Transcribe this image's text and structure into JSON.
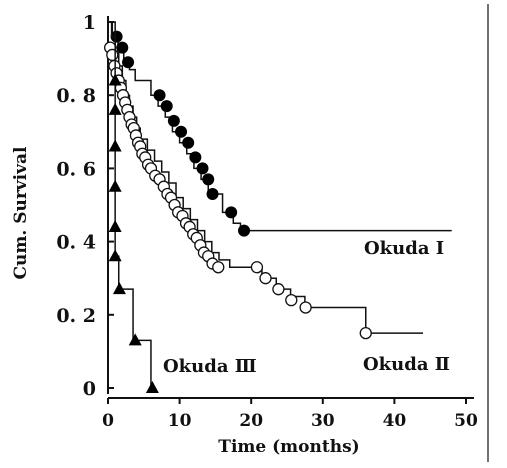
{
  "chart_data": {
    "type": "line",
    "step": true,
    "xlabel": "Time (months)",
    "ylabel": "Cum. Survival",
    "xlim": [
      0,
      50
    ],
    "ylim": [
      0,
      1
    ],
    "x_ticks": [
      0,
      10,
      20,
      30,
      40,
      50
    ],
    "y_ticks": [
      {
        "value": 0,
        "label": "0"
      },
      {
        "value": 0.2,
        "label": "0. 2"
      },
      {
        "value": 0.4,
        "label": "0. 4"
      },
      {
        "value": 0.6,
        "label": "0. 6"
      },
      {
        "value": 0.8,
        "label": "0. 8"
      },
      {
        "value": 1,
        "label": "1"
      }
    ],
    "grid": false,
    "series": [
      {
        "name": "Okuda Ⅰ",
        "marker": "filled-circle",
        "steps": [
          [
            0,
            1.0
          ],
          [
            0.6,
            0.97
          ],
          [
            1.4,
            0.94
          ],
          [
            2.2,
            0.9
          ],
          [
            3.0,
            0.87
          ],
          [
            3.8,
            0.84
          ],
          [
            6.0,
            0.8
          ],
          [
            7.0,
            0.77
          ],
          [
            8.0,
            0.74
          ],
          [
            9.0,
            0.7
          ],
          [
            10.0,
            0.67
          ],
          [
            11.0,
            0.64
          ],
          [
            12.0,
            0.6
          ],
          [
            13.0,
            0.57
          ],
          [
            14.0,
            0.53
          ],
          [
            16.0,
            0.48
          ],
          [
            17.5,
            0.45
          ],
          [
            18.5,
            0.43
          ],
          [
            48.0,
            0.43
          ]
        ],
        "markers": [
          [
            1.2,
            0.96
          ],
          [
            2.0,
            0.93
          ],
          [
            2.8,
            0.89
          ],
          [
            7.2,
            0.8
          ],
          [
            8.2,
            0.77
          ],
          [
            9.2,
            0.73
          ],
          [
            10.2,
            0.7
          ],
          [
            11.2,
            0.67
          ],
          [
            12.2,
            0.63
          ],
          [
            13.2,
            0.6
          ],
          [
            14.0,
            0.57
          ],
          [
            14.6,
            0.53
          ],
          [
            17.2,
            0.48
          ],
          [
            19.0,
            0.43
          ]
        ]
      },
      {
        "name": "Okuda Ⅱ",
        "marker": "open-circle",
        "steps": [
          [
            0,
            1.0
          ],
          [
            0.5,
            0.96
          ],
          [
            1.0,
            0.92
          ],
          [
            1.5,
            0.88
          ],
          [
            2.0,
            0.84
          ],
          [
            2.5,
            0.8
          ],
          [
            3.0,
            0.77
          ],
          [
            3.5,
            0.74
          ],
          [
            4.0,
            0.71
          ],
          [
            4.5,
            0.68
          ],
          [
            5.5,
            0.65
          ],
          [
            6.5,
            0.62
          ],
          [
            7.5,
            0.59
          ],
          [
            8.5,
            0.56
          ],
          [
            9.5,
            0.52
          ],
          [
            10.5,
            0.49
          ],
          [
            11.5,
            0.46
          ],
          [
            12.5,
            0.43
          ],
          [
            13.5,
            0.4
          ],
          [
            14.5,
            0.37
          ],
          [
            15.5,
            0.35
          ],
          [
            17.0,
            0.33
          ],
          [
            20.0,
            0.33
          ],
          [
            21.5,
            0.3
          ],
          [
            23.5,
            0.27
          ],
          [
            25.5,
            0.25
          ],
          [
            27.5,
            0.22
          ],
          [
            35.5,
            0.22
          ],
          [
            36.0,
            0.15
          ],
          [
            44.0,
            0.15
          ]
        ],
        "markers": [
          [
            0.3,
            0.93
          ],
          [
            0.6,
            0.91
          ],
          [
            0.9,
            0.88
          ],
          [
            1.2,
            0.86
          ],
          [
            1.5,
            0.84
          ],
          [
            1.8,
            0.82
          ],
          [
            2.1,
            0.8
          ],
          [
            2.4,
            0.78
          ],
          [
            2.7,
            0.76
          ],
          [
            3.0,
            0.74
          ],
          [
            3.3,
            0.72
          ],
          [
            3.6,
            0.71
          ],
          [
            3.9,
            0.69
          ],
          [
            4.2,
            0.67
          ],
          [
            4.5,
            0.66
          ],
          [
            4.8,
            0.64
          ],
          [
            5.2,
            0.63
          ],
          [
            5.6,
            0.61
          ],
          [
            6.0,
            0.6
          ],
          [
            6.6,
            0.58
          ],
          [
            7.2,
            0.57
          ],
          [
            7.8,
            0.55
          ],
          [
            8.3,
            0.53
          ],
          [
            8.8,
            0.52
          ],
          [
            9.3,
            0.5
          ],
          [
            9.8,
            0.48
          ],
          [
            10.4,
            0.47
          ],
          [
            10.9,
            0.45
          ],
          [
            11.4,
            0.44
          ],
          [
            11.9,
            0.42
          ],
          [
            12.4,
            0.41
          ],
          [
            12.9,
            0.39
          ],
          [
            13.4,
            0.37
          ],
          [
            14.0,
            0.36
          ],
          [
            14.6,
            0.34
          ],
          [
            15.4,
            0.33
          ],
          [
            20.8,
            0.33
          ],
          [
            22.0,
            0.3
          ],
          [
            23.8,
            0.27
          ],
          [
            25.6,
            0.24
          ],
          [
            27.6,
            0.22
          ],
          [
            36.0,
            0.15
          ]
        ]
      },
      {
        "name": "Okuda Ⅲ",
        "marker": "filled-triangle",
        "steps": [
          [
            0,
            1.0
          ],
          [
            1.0,
            0.84
          ],
          [
            1.0,
            0.76
          ],
          [
            1.0,
            0.66
          ],
          [
            1.0,
            0.55
          ],
          [
            1.0,
            0.44
          ],
          [
            1.0,
            0.36
          ],
          [
            1.5,
            0.27
          ],
          [
            3.5,
            0.13
          ],
          [
            6.0,
            0.0
          ]
        ],
        "markers": [
          [
            1.0,
            0.84
          ],
          [
            1.0,
            0.76
          ],
          [
            1.0,
            0.66
          ],
          [
            1.0,
            0.55
          ],
          [
            1.0,
            0.44
          ],
          [
            1.0,
            0.36
          ],
          [
            1.6,
            0.27
          ],
          [
            3.8,
            0.13
          ],
          [
            6.2,
            0.0
          ]
        ]
      }
    ],
    "annotations": [
      {
        "text": "Okuda Ⅰ",
        "series": 0
      },
      {
        "text": "Okuda Ⅱ",
        "series": 1
      },
      {
        "text": "Okuda Ⅲ",
        "series": 2
      }
    ]
  }
}
